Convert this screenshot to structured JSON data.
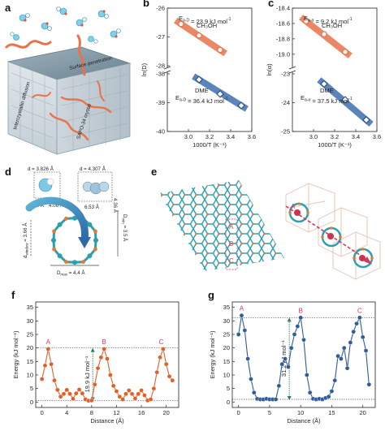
{
  "panels": {
    "a": {
      "letter": "a",
      "labels": [
        "Surface penetration",
        "Intercrystallin diffusion",
        "SAPO-34 crystal"
      ]
    },
    "d": {
      "letter": "d",
      "labels": {
        "d1": "d = 3.826 Å",
        "d2": "d = 4.307 Å",
        "w1": "4.18 Å",
        "w2": "4.06 Å",
        "w3": "6.53 Å",
        "w4": "4.36 Å",
        "dwindow": "d",
        "dwindow_sub": "window",
        "dwindow_val": " = 3.66 Å",
        "dmin": "D",
        "dmin_sub": "min",
        "dmin_val": " = 3.5 Å",
        "dmax": "D",
        "dmax_sub": "max",
        "dmax_val": " = 4.4 Å"
      }
    },
    "e": {
      "letter": "e",
      "labels": [
        "A",
        "B",
        "C",
        "A",
        "B",
        "C"
      ]
    }
  },
  "chart_data": [
    {
      "panel": "b",
      "type": "scatter",
      "xlabel": "1000/T (K⁻¹)",
      "ylabel": "ln(D)",
      "xlim": [
        2.8,
        3.6
      ],
      "xticks": [
        "3.0",
        "3.2",
        "3.4",
        "3.6"
      ],
      "broken_y": true,
      "upper_ylim": [
        -28,
        -26
      ],
      "upper_yticks": [
        "-26",
        "-27",
        "-28"
      ],
      "lower_ylim": [
        -40,
        -38
      ],
      "lower_yticks": [
        "-38",
        "-39",
        "-40"
      ],
      "series": [
        {
          "name": "CH3OH",
          "annotation": [
            "E",
            "a-D",
            " = 23.9 kJ mol",
            "-1",
            "CH₃OH"
          ],
          "color": "#e8734a",
          "marker": "circle",
          "x": [
            2.93,
            3.1,
            3.3
          ],
          "y": [
            -26.55,
            -26.95,
            -27.45
          ],
          "band": "upper"
        },
        {
          "name": "DME",
          "annotation": [
            "DME",
            "E",
            "a-D",
            " = 36.4 kJ mol",
            "-1"
          ],
          "color": "#3f6fae",
          "marker": "diamond",
          "x": [
            3.1,
            3.3,
            3.5
          ],
          "y": [
            -38.2,
            -38.7,
            -39.1
          ],
          "band": "lower"
        }
      ]
    },
    {
      "panel": "c",
      "type": "scatter",
      "xlabel": "1000/T (K⁻¹)",
      "ylabel": "ln(α)",
      "xlim": [
        2.8,
        3.6
      ],
      "xticks": [
        "3.0",
        "3.2",
        "3.4",
        "3.6"
      ],
      "broken_y": true,
      "upper_ylim": [
        -19.15,
        -18.4
      ],
      "upper_yticks": [
        "-18.4",
        "-18.6",
        "-18.8",
        "-19.0"
      ],
      "lower_ylim": [
        -25,
        -23
      ],
      "lower_yticks": [
        "-23",
        "-24",
        "-25"
      ],
      "series": [
        {
          "name": "CH3OH",
          "annotation": [
            "E",
            "a-α",
            " = 9.2 kJ mol",
            "-1",
            "CH₃OH"
          ],
          "color": "#e8734a",
          "marker": "circle",
          "x": [
            2.93,
            3.1,
            3.3
          ],
          "y": [
            -18.57,
            -18.74,
            -18.97
          ],
          "band": "upper"
        },
        {
          "name": "DME",
          "annotation": [
            "DME",
            "E",
            "a-α",
            " = 37.5 kJ mol",
            "-1"
          ],
          "color": "#3f6fae",
          "marker": "diamond",
          "x": [
            3.1,
            3.3,
            3.5
          ],
          "y": [
            -23.35,
            -23.9,
            -24.6
          ],
          "band": "lower"
        }
      ]
    },
    {
      "panel": "f",
      "type": "line",
      "xlabel": "Distance (Å)",
      "ylabel": "Energy (kJ mol⁻¹)",
      "xlim": [
        -1,
        22
      ],
      "ylim": [
        -2,
        37
      ],
      "xticks": [
        0,
        4,
        8,
        12,
        16,
        20
      ],
      "yticks": [
        0,
        5,
        10,
        15,
        20,
        25,
        30,
        35
      ],
      "color": "#e0602a",
      "barrier_label": "19.9 kJ mol⁻¹",
      "ref_lines": [
        20,
        0.6
      ],
      "points_labeled": [
        {
          "label": "A",
          "x": 1.0,
          "y": 19.6
        },
        {
          "label": "B",
          "x": 10.0,
          "y": 19.6
        },
        {
          "label": "C",
          "x": 19.2,
          "y": 19.6
        }
      ],
      "x": [
        0.0,
        0.5,
        1.0,
        1.5,
        2.0,
        2.5,
        3.0,
        3.5,
        4.0,
        4.5,
        5.0,
        5.5,
        6.0,
        6.5,
        7.0,
        7.5,
        8.0,
        8.5,
        9.0,
        9.5,
        10.0,
        10.5,
        11.0,
        11.5,
        12.0,
        12.5,
        13.0,
        13.5,
        14.0,
        14.5,
        15.0,
        15.5,
        16.0,
        16.5,
        17.0,
        17.5,
        18.0,
        18.5,
        19.0,
        19.5,
        20.0,
        20.5,
        21.0
      ],
      "y": [
        8.5,
        13.5,
        19.6,
        14.0,
        8.0,
        4.5,
        2.0,
        3.0,
        4.5,
        3.0,
        1.2,
        3.2,
        4.6,
        3.2,
        1.0,
        0.5,
        0.6,
        6.5,
        12.5,
        16.5,
        19.6,
        16.0,
        10.0,
        6.0,
        4.0,
        2.0,
        1.0,
        3.0,
        4.3,
        3.0,
        1.3,
        3.0,
        4.3,
        2.5,
        0.6,
        1.0,
        5.0,
        11.0,
        16.5,
        19.6,
        14.0,
        9.5,
        8.0
      ]
    },
    {
      "panel": "g",
      "type": "line",
      "xlabel": "Distance (Å)",
      "ylabel": "Energy (kJ mol⁻¹)",
      "xlim": [
        -1,
        22
      ],
      "ylim": [
        -2,
        37
      ],
      "xticks": [
        0,
        5,
        10,
        15,
        20
      ],
      "yticks": [
        0,
        5,
        10,
        15,
        20,
        25,
        30,
        35
      ],
      "color": "#2f5d9a",
      "barrier_label": "31.2 kJ mol⁻¹",
      "ref_lines": [
        31.2,
        1.0
      ],
      "points_labeled": [
        {
          "label": "A",
          "x": 0.5,
          "y": 32.0
        },
        {
          "label": "B",
          "x": 10.0,
          "y": 31.2
        },
        {
          "label": "C",
          "x": 19.5,
          "y": 31.2
        }
      ],
      "x": [
        0.0,
        0.5,
        1.0,
        1.5,
        2.0,
        2.5,
        3.0,
        3.5,
        4.0,
        4.5,
        5.0,
        5.5,
        6.0,
        6.5,
        7.0,
        7.5,
        8.0,
        8.5,
        9.0,
        9.5,
        10.0,
        10.5,
        11.0,
        11.5,
        12.0,
        12.5,
        13.0,
        13.5,
        14.0,
        14.5,
        15.0,
        15.5,
        16.0,
        16.5,
        17.0,
        17.5,
        18.0,
        18.5,
        19.0,
        19.5,
        20.0,
        20.5,
        21.0
      ],
      "y": [
        25.0,
        32.0,
        26.5,
        16.0,
        8.5,
        3.5,
        1.2,
        1.0,
        1.0,
        1.2,
        1.0,
        1.0,
        1.0,
        6.0,
        14.0,
        16.0,
        13.0,
        20.0,
        25.0,
        28.0,
        31.2,
        23.0,
        10.0,
        3.5,
        1.2,
        1.0,
        1.2,
        1.0,
        1.5,
        2.0,
        4.0,
        8.0,
        17.0,
        16.0,
        20.0,
        12.5,
        22.0,
        26.0,
        29.0,
        31.2,
        24.0,
        19.0,
        6.5
      ]
    }
  ]
}
